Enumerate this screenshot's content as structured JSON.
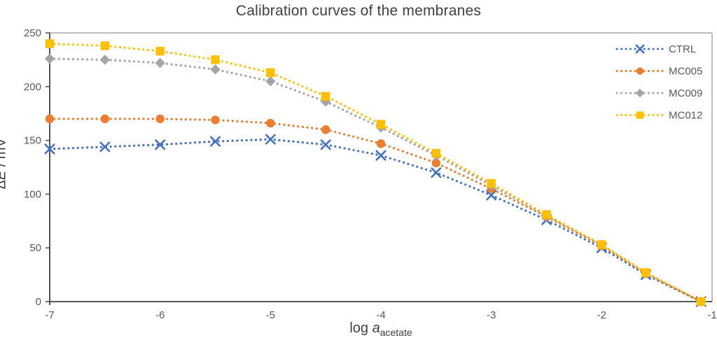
{
  "title": "Calibration curves of the membranes",
  "axes": {
    "y_delta": "Δ",
    "y_var": "E",
    "y_unit": " / mV",
    "x_prefix": "log ",
    "x_var": "a",
    "x_sub": "acetate"
  },
  "colors": {
    "axis_line": "#404040",
    "plot_border": "#A6A6A6",
    "tick_label": "#595959",
    "legend_text": "#595959",
    "title_text": "#404040"
  },
  "chart_data": {
    "type": "line",
    "title": "Calibration curves of the membranes",
    "xlabel": "log a_acetate",
    "ylabel": "ΔE / mV",
    "line_style": "dotted",
    "grid": false,
    "legend_position": "top-right",
    "xlim": [
      -7,
      -1
    ],
    "ylim": [
      0,
      250
    ],
    "x_ticks": [
      "-7",
      "-6",
      "-5",
      "-4",
      "-3",
      "-2",
      "-1"
    ],
    "x_tick_values": [
      -7,
      -6,
      -5,
      -4,
      -3,
      -2,
      -1
    ],
    "y_ticks": [
      "0",
      "50",
      "100",
      "150",
      "200",
      "250"
    ],
    "y_tick_values": [
      0,
      50,
      100,
      150,
      200,
      250
    ],
    "x": [
      -7,
      -6.5,
      -6,
      -5.5,
      -5,
      -4.5,
      -4,
      -3.5,
      -3,
      -2.5,
      -2,
      -1.6,
      -1.1
    ],
    "series": [
      {
        "name": "CTRL",
        "color": "#4472C4",
        "marker": "x",
        "values": [
          142,
          144,
          146,
          149,
          151,
          146,
          136,
          120,
          99,
          76,
          50,
          25,
          0
        ]
      },
      {
        "name": "MC005",
        "color": "#ED7D31",
        "marker": "circle",
        "values": [
          170,
          170,
          170,
          169,
          166,
          160,
          147,
          129,
          105,
          79,
          52,
          26,
          0
        ]
      },
      {
        "name": "MC009",
        "color": "#A5A5A5",
        "marker": "diamond",
        "values": [
          226,
          225,
          222,
          216,
          205,
          186,
          162,
          136,
          108,
          80,
          53,
          27,
          0
        ]
      },
      {
        "name": "MC012",
        "color": "#FFC000",
        "marker": "square",
        "values": [
          240,
          238,
          233,
          225,
          213,
          191,
          165,
          138,
          110,
          81,
          53,
          27,
          0
        ]
      }
    ]
  }
}
